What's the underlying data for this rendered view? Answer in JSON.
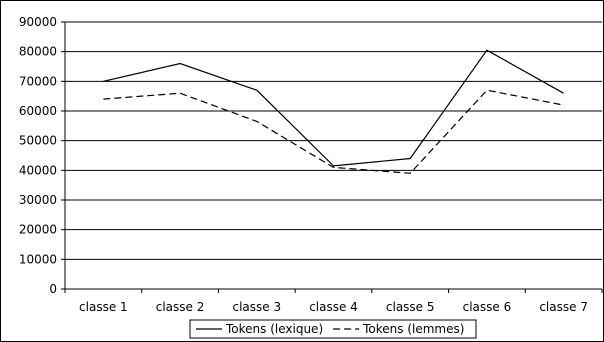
{
  "chart_data": {
    "type": "line",
    "title": "",
    "xlabel": "",
    "ylabel": "",
    "categories": [
      "classe 1",
      "classe 2",
      "classe 3",
      "classe 4",
      "classe 5",
      "classe 6",
      "classe 7"
    ],
    "ylim": [
      0,
      90000
    ],
    "yticks": [
      "0",
      "10000",
      "20000",
      "30000",
      "40000",
      "50000",
      "60000",
      "70000",
      "80000",
      "90000"
    ],
    "grid": "horizontal",
    "legend_position": "bottom",
    "series": [
      {
        "name": "Tokens (lexique)",
        "style": "solid",
        "color": "#000000",
        "values": [
          70000,
          76000,
          67000,
          41500,
          44000,
          80500,
          66000
        ]
      },
      {
        "name": "Tokens (lemmes)",
        "style": "dashed",
        "color": "#000000",
        "values": [
          64000,
          66000,
          56500,
          41000,
          39000,
          67000,
          62000
        ]
      }
    ]
  }
}
